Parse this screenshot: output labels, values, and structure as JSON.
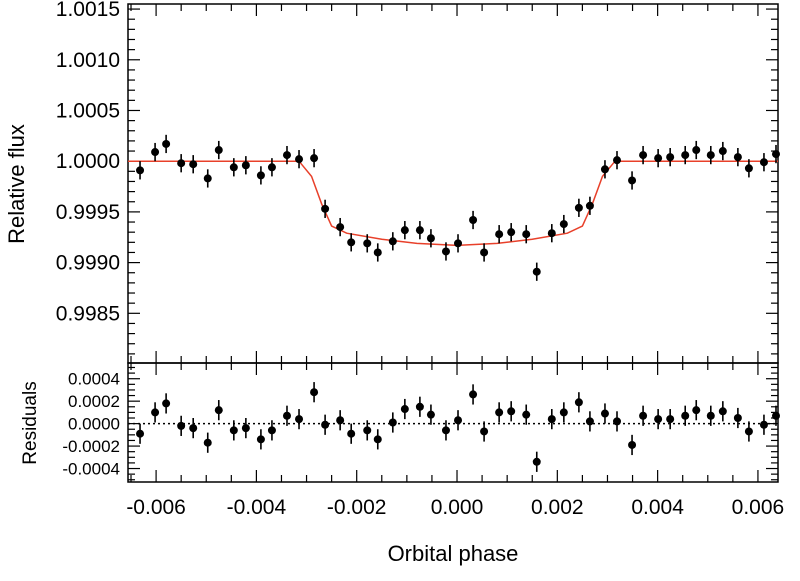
{
  "chart_data": [
    {
      "type": "scatter",
      "panel": "main",
      "ylabel": "Relative flux",
      "xlim": [
        -0.00656,
        0.0064
      ],
      "ylim": [
        0.99801,
        1.00155
      ],
      "yticks": [
        "0.9985",
        "0.9990",
        "0.9995",
        "1.0000",
        "1.0005",
        "1.0010",
        "1.0015"
      ],
      "grid": false,
      "point_color": "#000000",
      "model_color": "#e8402a",
      "yerr": 9e-05,
      "x": [
        -0.00632,
        -0.00602,
        -0.0058,
        -0.0055,
        -0.00526,
        -0.00497,
        -0.00475,
        -0.00445,
        -0.00421,
        -0.00391,
        -0.00369,
        -0.00339,
        -0.00315,
        -0.00285,
        -0.00263,
        -0.00233,
        -0.00211,
        -0.00179,
        -0.00158,
        -0.00128,
        -0.00104,
        -0.00074,
        -0.00052,
        -0.00022,
        2e-05,
        0.00032,
        0.00054,
        0.00084,
        0.00108,
        0.00138,
        0.00159,
        0.00189,
        0.00213,
        0.00243,
        0.00265,
        0.00295,
        0.00319,
        0.00349,
        0.00371,
        0.00401,
        0.00425,
        0.00455,
        0.00477,
        0.00506,
        0.0053,
        0.0056,
        0.00582,
        0.00612,
        0.00636
      ],
      "y": [
        0.99991,
        1.00009,
        1.00017,
        0.99998,
        0.99997,
        0.99983,
        1.00011,
        0.99994,
        0.99996,
        0.99986,
        0.99994,
        1.00006,
        1.00002,
        1.00003,
        0.99953,
        0.99935,
        0.9992,
        0.99919,
        0.9991,
        0.99921,
        0.99932,
        0.99932,
        0.99924,
        0.99911,
        0.99919,
        0.99942,
        0.9991,
        0.99928,
        0.9993,
        0.99928,
        0.99891,
        0.99929,
        0.99938,
        0.99954,
        0.99956,
        0.99992,
        1.00001,
        0.99981,
        1.00006,
        1.00003,
        1.00004,
        1.00006,
        1.00011,
        1.00006,
        1.0001,
        1.00004,
        0.99993,
        0.99999,
        1.00007
      ],
      "model": {
        "x": [
          -0.0066,
          -0.00315,
          -0.0029,
          -0.0027,
          -0.0025,
          -0.0022,
          -0.0015,
          -0.0008,
          0,
          0.0008,
          0.0015,
          0.0022,
          0.0025,
          0.0027,
          0.0029,
          0.00315,
          0.0066
        ],
        "y": [
          1.0,
          1.0,
          0.99985,
          0.99958,
          0.99936,
          0.99929,
          0.99923,
          0.99919,
          0.99917,
          0.99919,
          0.99923,
          0.99929,
          0.99936,
          0.99958,
          0.99985,
          1.0,
          1.0
        ]
      }
    },
    {
      "type": "scatter",
      "panel": "residuals",
      "ylabel": "Residuals",
      "xlabel": "Orbital phase",
      "xlim": [
        -0.00656,
        0.0064
      ],
      "ylim": [
        -0.00052,
        0.00054
      ],
      "yticks": [
        "-0.0004",
        "-0.0002",
        "0.0000",
        "0.0002",
        "0.0004"
      ],
      "xticks": [
        "-0.006",
        "-0.004",
        "-0.002",
        "0.000",
        "0.002",
        "0.004",
        "0.006"
      ],
      "zero_line": "dotted",
      "yerr": 9e-05,
      "y": [
        -9e-05,
        0.0001,
        0.00018,
        -2e-05,
        -4e-05,
        -0.00017,
        0.00012,
        -6e-05,
        -4e-05,
        -0.00014,
        -6e-05,
        7e-05,
        4e-05,
        0.00028,
        -1e-05,
        3e-05,
        -9e-05,
        -6e-05,
        -0.00014,
        1e-05,
        0.00013,
        0.00015,
        8e-05,
        -6e-05,
        3e-05,
        0.00026,
        -7e-05,
        0.0001,
        0.00011,
        8e-05,
        -0.00034,
        4e-05,
        0.0001,
        0.00019,
        2e-05,
        9e-05,
        2e-05,
        -0.00019,
        7e-05,
        4e-05,
        4e-05,
        7e-05,
        0.00012,
        7e-05,
        0.00011,
        5e-05,
        -7e-05,
        -1e-05,
        7e-05
      ]
    }
  ]
}
